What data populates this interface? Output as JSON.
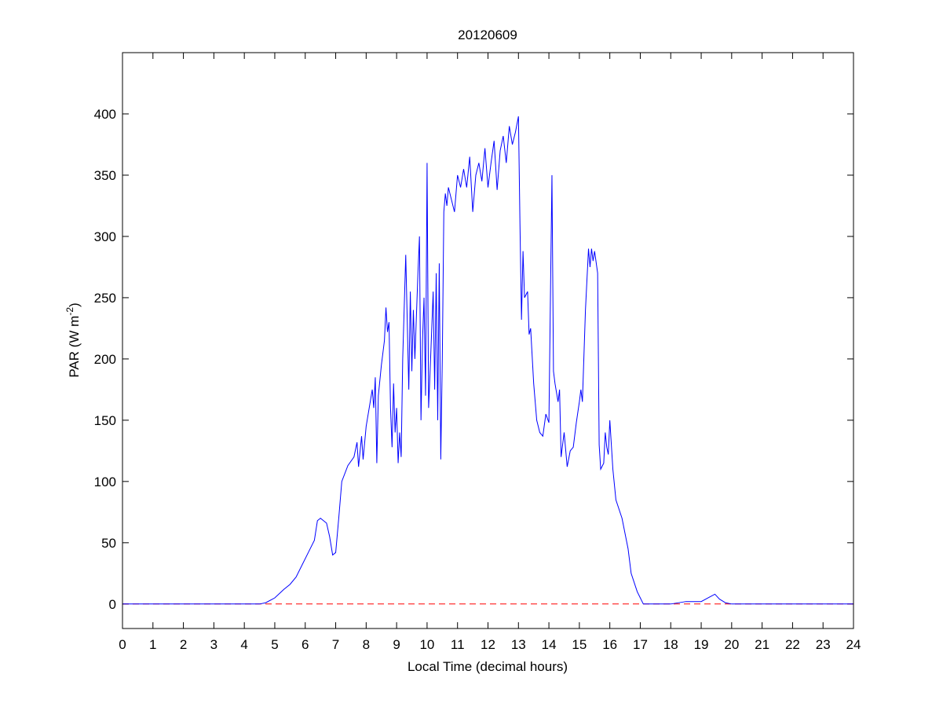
{
  "chart_data": {
    "type": "line",
    "title": "20120609",
    "xlabel": "Local Time (decimal hours)",
    "ylabel": {
      "text": "PAR (W m",
      "superscript": "-2",
      "suffix": ")"
    },
    "xlim": [
      0,
      24
    ],
    "ylim": [
      -20,
      450
    ],
    "xticks": [
      0,
      1,
      2,
      3,
      4,
      5,
      6,
      7,
      8,
      9,
      10,
      11,
      12,
      13,
      14,
      15,
      16,
      17,
      18,
      19,
      20,
      21,
      22,
      23,
      24
    ],
    "yticks": [
      0,
      50,
      100,
      150,
      200,
      250,
      300,
      350,
      400
    ],
    "reference_line": {
      "value": 0,
      "color": "#ff0000",
      "style": "dashed"
    },
    "series": [
      {
        "color": "#0000ff",
        "x": [
          0,
          4.5,
          4.7,
          5,
          5.3,
          5.5,
          5.7,
          5.9,
          6.1,
          6.3,
          6.4,
          6.5,
          6.7,
          6.8,
          6.9,
          7.0,
          7.1,
          7.2,
          7.4,
          7.6,
          7.7,
          7.75,
          7.85,
          7.9,
          8.0,
          8.1,
          8.2,
          8.25,
          8.3,
          8.35,
          8.4,
          8.5,
          8.6,
          8.65,
          8.7,
          8.75,
          8.8,
          8.85,
          8.9,
          8.95,
          9.0,
          9.05,
          9.1,
          9.15,
          9.2,
          9.3,
          9.35,
          9.4,
          9.45,
          9.5,
          9.55,
          9.6,
          9.7,
          9.75,
          9.8,
          9.85,
          9.9,
          9.95,
          10.0,
          10.05,
          10.1,
          10.2,
          10.25,
          10.3,
          10.35,
          10.4,
          10.45,
          10.5,
          10.55,
          10.6,
          10.65,
          10.7,
          10.8,
          10.9,
          11.0,
          11.1,
          11.2,
          11.3,
          11.4,
          11.5,
          11.6,
          11.7,
          11.8,
          11.9,
          12.0,
          12.1,
          12.2,
          12.3,
          12.4,
          12.5,
          12.6,
          12.7,
          12.8,
          12.9,
          13.0,
          13.05,
          13.1,
          13.15,
          13.2,
          13.3,
          13.35,
          13.4,
          13.5,
          13.6,
          13.7,
          13.8,
          13.9,
          14.0,
          14.05,
          14.1,
          14.15,
          14.2,
          14.3,
          14.35,
          14.4,
          14.5,
          14.6,
          14.7,
          14.8,
          14.9,
          15.0,
          15.05,
          15.1,
          15.2,
          15.3,
          15.35,
          15.4,
          15.45,
          15.5,
          15.6,
          15.65,
          15.7,
          15.8,
          15.85,
          15.9,
          15.95,
          16.0,
          16.1,
          16.2,
          16.4,
          16.6,
          16.7,
          16.9,
          17.1,
          18.0,
          18.5,
          19.0,
          19.3,
          19.45,
          19.6,
          19.8,
          20,
          24
        ],
        "values": [
          0,
          0,
          1,
          5,
          12,
          16,
          22,
          32,
          42,
          52,
          68,
          70,
          66,
          55,
          40,
          42,
          70,
          100,
          113,
          120,
          132,
          112,
          137,
          118,
          145,
          160,
          175,
          160,
          185,
          115,
          170,
          195,
          215,
          242,
          222,
          230,
          160,
          128,
          180,
          140,
          160,
          115,
          140,
          120,
          200,
          285,
          230,
          175,
          255,
          190,
          240,
          200,
          270,
          300,
          150,
          215,
          250,
          170,
          360,
          160,
          190,
          255,
          175,
          270,
          150,
          278,
          118,
          200,
          320,
          335,
          325,
          340,
          330,
          320,
          350,
          340,
          355,
          340,
          365,
          320,
          350,
          360,
          345,
          372,
          340,
          360,
          378,
          338,
          370,
          382,
          360,
          390,
          375,
          385,
          398,
          310,
          232,
          288,
          250,
          255,
          220,
          225,
          180,
          150,
          140,
          137,
          155,
          148,
          250,
          350,
          190,
          180,
          165,
          175,
          120,
          140,
          112,
          125,
          128,
          148,
          165,
          175,
          165,
          240,
          290,
          275,
          290,
          280,
          288,
          270,
          130,
          110,
          115,
          140,
          128,
          122,
          150,
          110,
          85,
          70,
          45,
          25,
          10,
          0,
          0,
          2,
          2,
          6,
          8,
          4,
          1,
          0,
          0
        ]
      }
    ]
  }
}
